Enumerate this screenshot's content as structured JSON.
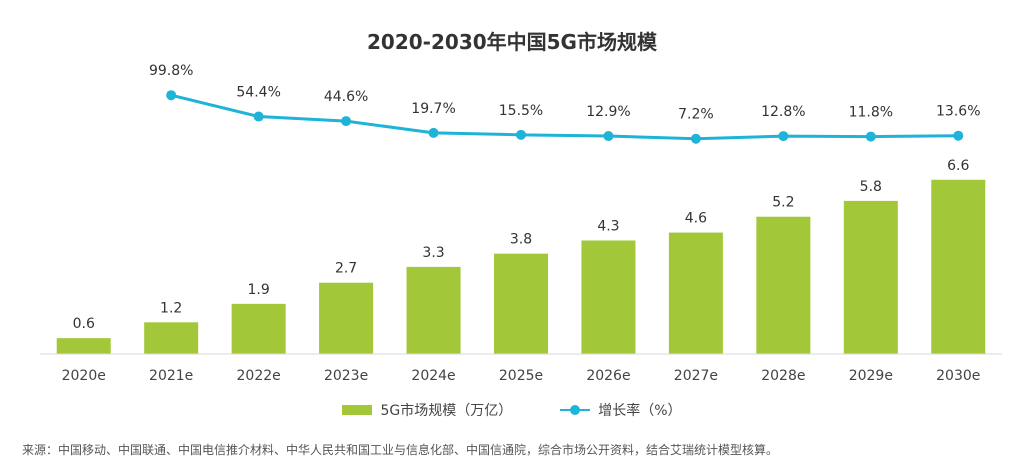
{
  "chart_data": {
    "type": "bar",
    "title": "2020-2030年中国5G市场规模",
    "categories": [
      "2020e",
      "2021e",
      "2022e",
      "2023e",
      "2024e",
      "2025e",
      "2026e",
      "2027e",
      "2028e",
      "2029e",
      "2030e"
    ],
    "series": [
      {
        "name": "5G市场规模（万亿）",
        "type": "bar",
        "values": [
          0.6,
          1.2,
          1.9,
          2.7,
          3.3,
          3.8,
          4.3,
          4.6,
          5.2,
          5.8,
          6.6
        ],
        "color": "#a2c739"
      },
      {
        "name": "增长率（%）",
        "type": "line",
        "values": [
          null,
          99.8,
          54.4,
          44.6,
          19.7,
          15.5,
          12.9,
          7.2,
          12.8,
          11.8,
          13.6
        ],
        "labels": [
          "",
          "99.8%",
          "54.4%",
          "44.6%",
          "19.7%",
          "15.5%",
          "12.9%",
          "7.2%",
          "12.8%",
          "11.8%",
          "13.6%"
        ],
        "color": "#1fb3d8"
      }
    ],
    "legend_placement": "bottom",
    "grid": false
  },
  "source_note": "来源：中国移动、中国联通、中国电信推介材料、中华人民共和国工业与信息化部、中国信通院，综合市场公开资料，结合艾瑞统计模型核算。"
}
